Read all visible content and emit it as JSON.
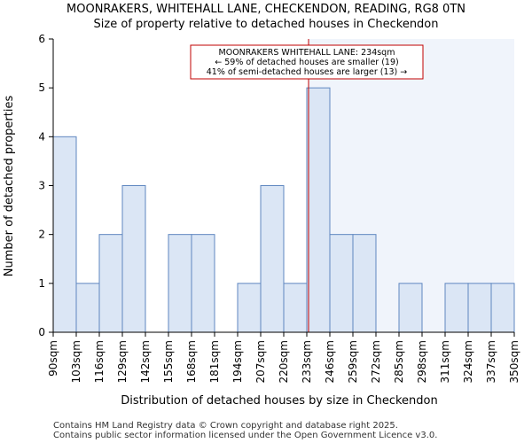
{
  "chart_data": {
    "type": "bar",
    "title_line1": "MOONRAKERS, WHITEHALL LANE, CHECKENDON, READING, RG8 0TN",
    "title_line2": "Size of property relative to detached houses in Checkendon",
    "xlabel": "Distribution of detached houses by size in Checkendon",
    "ylabel": "Number of detached properties",
    "bin_edges": [
      90,
      103,
      116,
      129,
      142,
      155,
      168,
      181,
      194,
      207,
      220,
      233,
      246,
      259,
      272,
      285,
      298,
      311,
      324,
      337,
      350
    ],
    "tick_labels": [
      "90sqm",
      "103sqm",
      "116sqm",
      "129sqm",
      "142sqm",
      "155sqm",
      "168sqm",
      "181sqm",
      "194sqm",
      "207sqm",
      "220sqm",
      "233sqm",
      "246sqm",
      "259sqm",
      "272sqm",
      "285sqm",
      "298sqm",
      "311sqm",
      "324sqm",
      "337sqm",
      "350sqm"
    ],
    "values": [
      4,
      1,
      2,
      3,
      0,
      2,
      2,
      0,
      1,
      3,
      1,
      5,
      2,
      2,
      0,
      1,
      0,
      1,
      1,
      1
    ],
    "ylim": [
      0,
      6
    ],
    "yticks": [
      0,
      1,
      2,
      3,
      4,
      5,
      6
    ],
    "marker_value": 234,
    "annotation": {
      "line1": "MOONRAKERS WHITEHALL LANE: 234sqm",
      "line2": "← 59% of detached houses are smaller (19)",
      "line3": "41% of semi-detached houses are larger (13) →"
    },
    "colors": {
      "bar_fill": "#dbe6f5",
      "bar_stroke": "#5f87c0",
      "highlight_bg": "#f0f4fb",
      "marker": "#c00000",
      "axis": "#000000"
    }
  },
  "footer": {
    "line1": "Contains HM Land Registry data © Crown copyright and database right 2025.",
    "line2": "Contains public sector information licensed under the Open Government Licence v3.0."
  }
}
